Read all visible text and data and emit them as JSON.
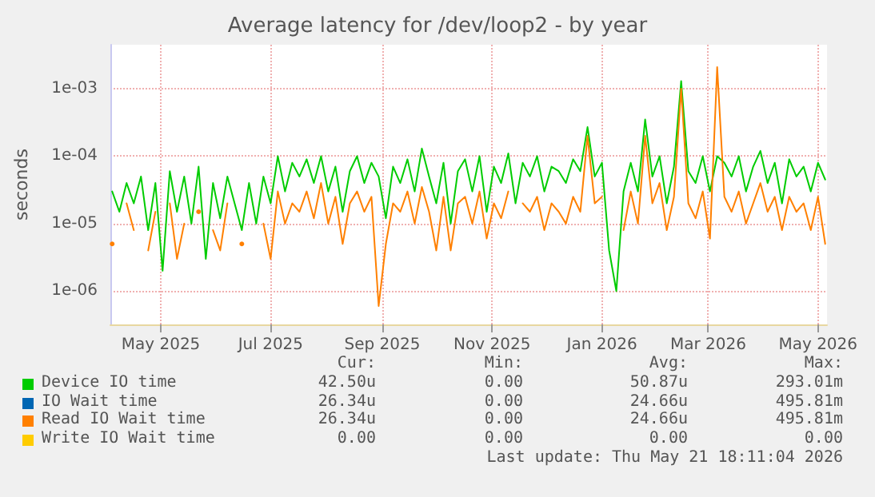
{
  "chart_data": {
    "type": "line",
    "title": "Average latency for /dev/loop2 - by year",
    "ylabel": "seconds",
    "log": "y",
    "grid": true,
    "legend": "bottom",
    "marker": "none",
    "line_style": "solid",
    "xlim": [
      "2025-04-18",
      "2026-05-21"
    ],
    "ylim": [
      3.2e-07,
      0.0045
    ],
    "xticks": [
      {
        "value": "2025-05-16",
        "label": "May 2025"
      },
      {
        "value": "2025-07-16",
        "label": "Jul 2025"
      },
      {
        "value": "2025-09-16",
        "label": "Sep 2025"
      },
      {
        "value": "2025-11-16",
        "label": "Nov 2025"
      },
      {
        "value": "2026-01-16",
        "label": "Jan 2026"
      },
      {
        "value": "2026-03-16",
        "label": "Mar 2026"
      },
      {
        "value": "2026-05-16",
        "label": "May 2026"
      }
    ],
    "yticks": [
      {
        "value": 1e-06,
        "label": "1e-06"
      },
      {
        "value": 1e-05,
        "label": "1e-05"
      },
      {
        "value": 0.0001,
        "label": "1e-04"
      },
      {
        "value": 0.001,
        "label": "1e-03"
      }
    ],
    "x": [
      "2025-04-19",
      "2025-04-23",
      "2025-04-27",
      "2025-05-01",
      "2025-05-05",
      "2025-05-09",
      "2025-05-13",
      "2025-05-17",
      "2025-05-21",
      "2025-05-25",
      "2025-05-29",
      "2025-06-02",
      "2025-06-06",
      "2025-06-10",
      "2025-06-14",
      "2025-06-18",
      "2025-06-22",
      "2025-06-26",
      "2025-06-30",
      "2025-07-04",
      "2025-07-08",
      "2025-07-12",
      "2025-07-16",
      "2025-07-20",
      "2025-07-24",
      "2025-07-28",
      "2025-08-01",
      "2025-08-05",
      "2025-08-09",
      "2025-08-13",
      "2025-08-17",
      "2025-08-21",
      "2025-08-25",
      "2025-08-29",
      "2025-09-02",
      "2025-09-06",
      "2025-09-10",
      "2025-09-14",
      "2025-09-18",
      "2025-09-22",
      "2025-09-26",
      "2025-09-30",
      "2025-10-04",
      "2025-10-08",
      "2025-10-12",
      "2025-10-16",
      "2025-10-20",
      "2025-10-24",
      "2025-10-28",
      "2025-11-01",
      "2025-11-05",
      "2025-11-09",
      "2025-11-13",
      "2025-11-17",
      "2025-11-21",
      "2025-11-25",
      "2025-11-29",
      "2025-12-03",
      "2025-12-07",
      "2025-12-11",
      "2025-12-15",
      "2025-12-19",
      "2025-12-23",
      "2025-12-27",
      "2025-12-31",
      "2026-01-04",
      "2026-01-08",
      "2026-01-12",
      "2026-01-16",
      "2026-01-20",
      "2026-01-24",
      "2026-01-28",
      "2026-02-01",
      "2026-02-05",
      "2026-02-09",
      "2026-02-13",
      "2026-02-17",
      "2026-02-21",
      "2026-02-25",
      "2026-03-01",
      "2026-03-05",
      "2026-03-09",
      "2026-03-13",
      "2026-03-17",
      "2026-03-21",
      "2026-03-25",
      "2026-03-29",
      "2026-04-02",
      "2026-04-06",
      "2026-04-10",
      "2026-04-14",
      "2026-04-18",
      "2026-04-22",
      "2026-04-26",
      "2026-04-30",
      "2026-05-04",
      "2026-05-08",
      "2026-05-12",
      "2026-05-16",
      "2026-05-20"
    ],
    "series": [
      {
        "name": "Device IO time",
        "color": "#00cc00",
        "values": [
          3e-05,
          1.5e-05,
          4e-05,
          2e-05,
          5e-05,
          8e-06,
          4e-05,
          2e-06,
          6e-05,
          1.5e-05,
          5e-05,
          1e-05,
          7e-05,
          3e-06,
          4e-05,
          1.2e-05,
          5e-05,
          2e-05,
          8e-06,
          4e-05,
          1e-05,
          5e-05,
          2e-05,
          0.0001,
          3e-05,
          8e-05,
          5e-05,
          9e-05,
          4e-05,
          0.0001,
          3e-05,
          7e-05,
          1.5e-05,
          6e-05,
          0.0001,
          4e-05,
          8e-05,
          5e-05,
          1.2e-05,
          7e-05,
          4e-05,
          9e-05,
          3e-05,
          0.00013,
          5e-05,
          2e-05,
          8e-05,
          1e-05,
          6e-05,
          9e-05,
          3e-05,
          0.0001,
          1.5e-05,
          7e-05,
          4e-05,
          0.00011,
          2e-05,
          8e-05,
          5e-05,
          0.0001,
          3e-05,
          7e-05,
          6e-05,
          4e-05,
          9e-05,
          6e-05,
          0.00027,
          5e-05,
          8e-05,
          4e-06,
          1e-06,
          3e-05,
          8e-05,
          3e-05,
          0.00035,
          5e-05,
          0.0001,
          2e-05,
          7e-05,
          0.0013,
          6e-05,
          4e-05,
          0.0001,
          3e-05,
          0.0001,
          8e-05,
          5e-05,
          0.0001,
          3e-05,
          7e-05,
          0.00012,
          4e-05,
          8e-05,
          2e-05,
          9e-05,
          5e-05,
          7e-05,
          3e-05,
          8e-05,
          4.5e-05
        ]
      },
      {
        "name": "IO Wait time",
        "color": "#0066b3",
        "values": [
          null,
          null,
          null,
          null,
          null,
          null,
          null,
          null,
          null,
          null,
          null,
          null,
          null,
          null,
          null,
          null,
          null,
          null,
          null,
          null,
          null,
          null,
          null,
          null,
          null,
          null,
          null,
          null,
          null,
          null,
          null,
          null,
          null,
          null,
          null,
          null,
          null,
          null,
          null,
          null,
          null,
          null,
          null,
          null,
          null,
          null,
          null,
          null,
          null,
          null,
          null,
          null,
          null,
          null,
          null,
          null,
          null,
          null,
          null,
          null,
          null,
          null,
          null,
          null,
          null,
          null,
          null,
          null,
          null,
          null,
          null,
          null,
          null,
          null,
          null,
          null,
          null,
          null,
          null,
          null,
          null,
          null,
          null,
          null,
          null,
          null,
          null,
          null,
          null,
          null,
          null,
          null,
          null,
          null,
          null,
          null,
          null,
          null,
          null,
          null
        ]
      },
      {
        "name": "Read IO Wait time",
        "color": "#ff8000",
        "values": [
          5e-06,
          null,
          2e-05,
          8e-06,
          null,
          4e-06,
          1.5e-05,
          null,
          2e-05,
          3e-06,
          1e-05,
          null,
          1.5e-05,
          null,
          8e-06,
          4e-06,
          2e-05,
          null,
          5e-06,
          null,
          null,
          1e-05,
          3e-06,
          3e-05,
          1e-05,
          2e-05,
          1.5e-05,
          3e-05,
          1.2e-05,
          4e-05,
          1e-05,
          2.5e-05,
          5e-06,
          2e-05,
          3e-05,
          1.5e-05,
          2.5e-05,
          6e-07,
          5e-06,
          2e-05,
          1.5e-05,
          3e-05,
          1e-05,
          3.5e-05,
          1.5e-05,
          4e-06,
          2.5e-05,
          4e-06,
          2e-05,
          2.5e-05,
          1e-05,
          3e-05,
          6e-06,
          2e-05,
          1.2e-05,
          3e-05,
          null,
          2e-05,
          1.5e-05,
          2.5e-05,
          8e-06,
          2e-05,
          1.5e-05,
          1e-05,
          2.5e-05,
          1.5e-05,
          0.0002,
          2e-05,
          2.5e-05,
          null,
          null,
          8e-06,
          3e-05,
          1e-05,
          0.0002,
          2e-05,
          4e-05,
          8e-06,
          2.5e-05,
          0.001,
          2e-05,
          1.2e-05,
          3e-05,
          6e-06,
          0.0021,
          2.5e-05,
          1.5e-05,
          3e-05,
          1e-05,
          2e-05,
          4e-05,
          1.5e-05,
          2.5e-05,
          8e-06,
          2.5e-05,
          1.5e-05,
          2e-05,
          8e-06,
          2.5e-05,
          5e-06
        ]
      },
      {
        "name": "Write IO Wait time",
        "color": "#ffcc00",
        "values": [
          null,
          null,
          null,
          null,
          null,
          null,
          null,
          null,
          null,
          null,
          null,
          null,
          null,
          null,
          null,
          null,
          null,
          null,
          null,
          null,
          null,
          null,
          null,
          null,
          null,
          null,
          null,
          null,
          null,
          null,
          null,
          null,
          null,
          null,
          null,
          null,
          null,
          null,
          null,
          null,
          null,
          null,
          null,
          null,
          null,
          null,
          null,
          null,
          null,
          null,
          null,
          null,
          null,
          null,
          null,
          null,
          null,
          null,
          null,
          null,
          null,
          null,
          null,
          null,
          null,
          null,
          null,
          null,
          null,
          null,
          null,
          null,
          null,
          null,
          null,
          null,
          null,
          null,
          null,
          null,
          null,
          null,
          null,
          null,
          null,
          null,
          null,
          null,
          null,
          null,
          null,
          null,
          null,
          null,
          null,
          null,
          null,
          null,
          null,
          null
        ]
      }
    ],
    "annotations": [
      "Cur:",
      "Min:",
      "Avg:",
      "Max:",
      "42.50u",
      "0.00",
      "50.87u",
      "293.01m",
      "26.34u",
      "0.00",
      "24.66u",
      "495.81m",
      "26.34u",
      "0.00",
      "24.66u",
      "495.81m",
      "0.00",
      "0.00",
      "0.00",
      "0.00",
      "Last update: Thu May 21 18:11:04 2026"
    ]
  }
}
